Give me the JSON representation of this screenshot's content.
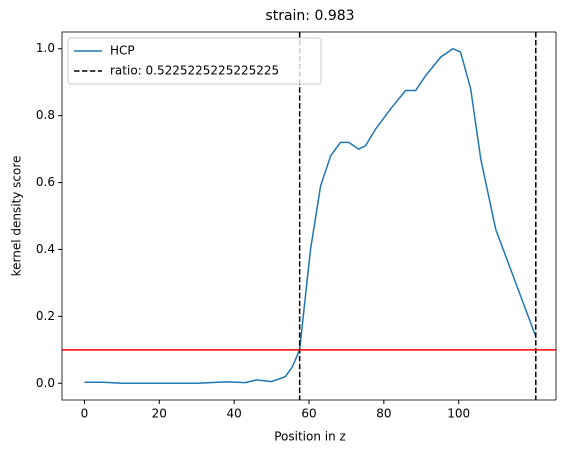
{
  "chart_data": {
    "type": "line",
    "title": "strain: 0.983",
    "xlabel": "Position in z",
    "ylabel": "kernel density score",
    "x": [
      0,
      5,
      10,
      20,
      30,
      38,
      43,
      46,
      50,
      53.7,
      55.6,
      57.5,
      60.4,
      63.1,
      65.8,
      68.4,
      70.6,
      73.3,
      75.1,
      77.8,
      81.8,
      85.8,
      88.5,
      91.2,
      95.2,
      98.4,
      100.5,
      103.2,
      105.9,
      109.9,
      113.9,
      117.9,
      120.6
    ],
    "series": [
      {
        "name": "HCP",
        "color": "#1f77b4",
        "values": [
          0.003,
          0.003,
          0.0,
          0.0,
          0.0,
          0.004,
          0.002,
          0.01,
          0.005,
          0.02,
          0.05,
          0.1,
          0.4,
          0.59,
          0.68,
          0.72,
          0.72,
          0.7,
          0.71,
          0.76,
          0.82,
          0.875,
          0.875,
          0.92,
          0.975,
          1.0,
          0.99,
          0.88,
          0.67,
          0.46,
          0.34,
          0.22,
          0.14
        ]
      }
    ],
    "vlines": {
      "name": "ratio: 0.5225225225225225",
      "color": "#000000",
      "values": [
        57.5,
        120.6
      ]
    },
    "hline": {
      "value": 0.1,
      "color": "#ff0000"
    },
    "xlim": [
      -6,
      126
    ],
    "ylim": [
      -0.05,
      1.05
    ],
    "xticks": [
      0,
      20,
      40,
      60,
      80,
      100
    ],
    "yticks": [
      {
        "value": 0,
        "label": "0.0"
      },
      {
        "value": 0.2,
        "label": "0.2"
      },
      {
        "value": 0.4,
        "label": "0.4"
      },
      {
        "value": 0.6,
        "label": "0.6"
      },
      {
        "value": 0.8,
        "label": "0.8"
      },
      {
        "value": 1,
        "label": "1.0"
      }
    ],
    "legend": "upper left"
  }
}
